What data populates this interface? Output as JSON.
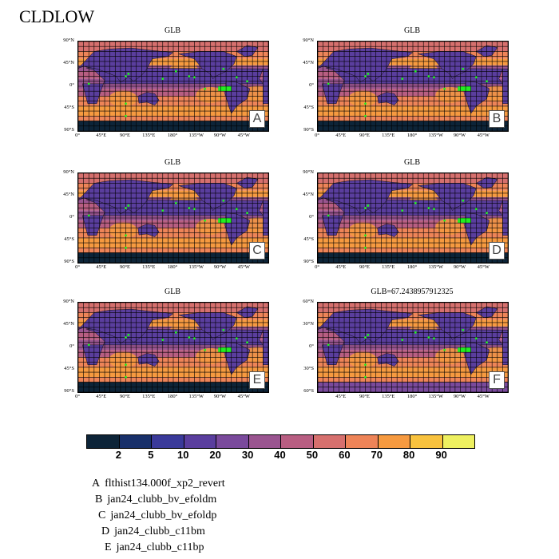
{
  "title": "CLDLOW",
  "panels": [
    {
      "title": "GLB",
      "letter": "A",
      "yticks": [
        "90°N",
        "45°N",
        "0°",
        "45°S",
        "90°S"
      ],
      "xticks": [
        "0°",
        "45°E",
        "90°E",
        "135°E",
        "180°",
        "135°W",
        "90°W",
        "45°W"
      ]
    },
    {
      "title": "GLB",
      "letter": "B",
      "yticks": [
        "90°N",
        "45°N",
        "0°",
        "45°S",
        "90°S"
      ],
      "xticks": [
        "0°",
        "45°E",
        "90°E",
        "135°E",
        "180°",
        "135°W",
        "90°W",
        "45°W"
      ]
    },
    {
      "title": "GLB",
      "letter": "C",
      "yticks": [
        "90°N",
        "45°N",
        "0°",
        "45°S",
        "90°S"
      ],
      "xticks": [
        "0°",
        "45°E",
        "90°E",
        "135°E",
        "180°",
        "135°W",
        "90°W",
        "45°W"
      ]
    },
    {
      "title": "GLB",
      "letter": "D",
      "yticks": [
        "90°N",
        "45°N",
        "0°",
        "45°S",
        "90°S"
      ],
      "xticks": [
        "0°",
        "45°E",
        "90°E",
        "135°E",
        "180°",
        "135°W",
        "90°W",
        "45°W"
      ]
    },
    {
      "title": "GLB",
      "letter": "E",
      "yticks": [
        "90°N",
        "45°N",
        "0°",
        "45°S",
        "90°S"
      ],
      "xticks": [
        "0°",
        "45°E",
        "90°E",
        "135°E",
        "180°",
        "135°W",
        "90°W",
        "45°W"
      ]
    },
    {
      "title": "GLB=67.2438957912325",
      "letter": "F",
      "yticks": [
        "60°N",
        "30°N",
        "0°",
        "30°S",
        "60°S"
      ],
      "xticks": [
        "45°E",
        "90°E",
        "135°E",
        "180°",
        "135°W",
        "90°W",
        "45°W"
      ]
    }
  ],
  "colorbar": {
    "colors": [
      "#0d2438",
      "#18306a",
      "#3a3a9a",
      "#5a3e9e",
      "#7a4a9c",
      "#9a5590",
      "#b85e82",
      "#d6706e",
      "#ee8458",
      "#f69a40",
      "#f8c23e",
      "#eef060"
    ],
    "ticks": [
      "2",
      "5",
      "10",
      "20",
      "30",
      "40",
      "50",
      "60",
      "70",
      "80",
      "90"
    ]
  },
  "legend": [
    {
      "letter": "A",
      "name": "flthist134.000f_xp2_revert"
    },
    {
      "letter": "B",
      "name": "jan24_clubb_bv_efoldm"
    },
    {
      "letter": "C",
      "name": "jan24_clubb_bv_efoldp"
    },
    {
      "letter": "D",
      "name": "jan24_clubb_c11bm"
    },
    {
      "letter": "E",
      "name": "jan24_clubb_c11bp"
    }
  ]
}
